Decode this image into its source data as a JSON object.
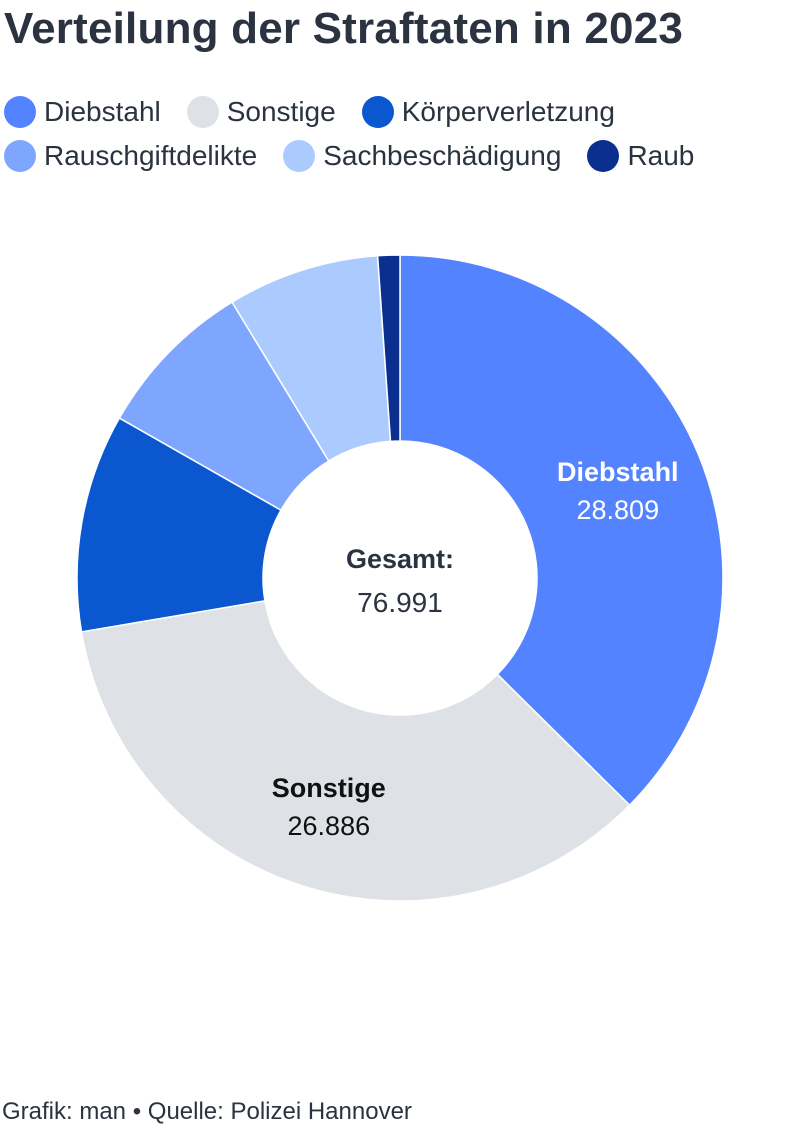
{
  "title": "Verteilung der Straftaten in 2023",
  "footer": "Grafik: man • Quelle: Polizei Hannover",
  "chart_data": {
    "type": "pie",
    "donut": true,
    "title": "Verteilung der Straftaten in 2023",
    "center_label": "Gesamt:",
    "center_value": "76.991",
    "total": 76991,
    "legend_placement": "top",
    "slices": [
      {
        "name": "Diebstahl",
        "value": 28809,
        "value_label": "28.809",
        "color": "#5383ff",
        "show_label": true,
        "label_color": "#ffffff"
      },
      {
        "name": "Sonstige",
        "value": 26886,
        "value_label": "26.886",
        "color": "#dee1e5",
        "show_label": true,
        "label_color": "#111111"
      },
      {
        "name": "Körperverletzung",
        "value": 8400,
        "color": "#0b57d0",
        "show_label": false
      },
      {
        "name": "Rauschgiftdelikte",
        "value": 6200,
        "color": "#7fa6ff",
        "show_label": false
      },
      {
        "name": "Sachbeschädigung",
        "value": 5850,
        "color": "#abcbff",
        "show_label": false
      },
      {
        "name": "Raub",
        "value": 850,
        "color": "#0a2f8f",
        "show_label": false
      }
    ]
  }
}
